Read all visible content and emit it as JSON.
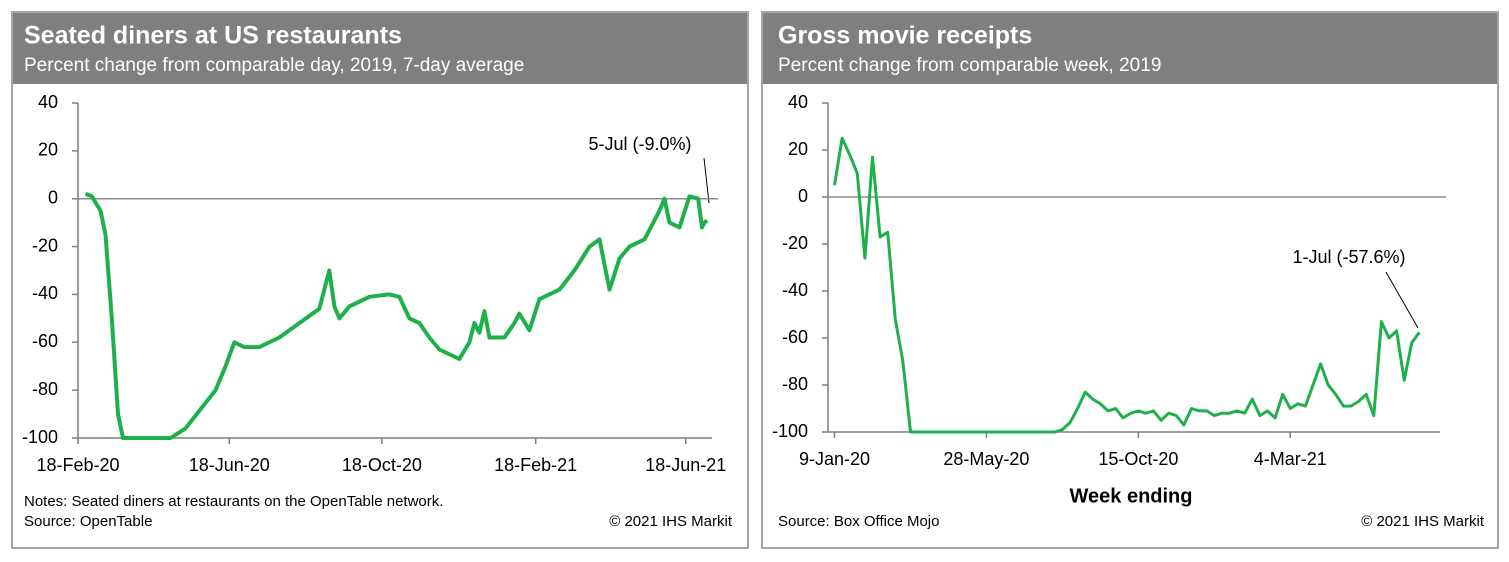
{
  "chart_data": [
    {
      "type": "line",
      "title": "Seated diners at US restaurants",
      "subtitle": "Percent change from comparable day, 2019, 7-day average",
      "x": [
        "2020-02-24",
        "2020-02-29",
        "2020-03-07",
        "2020-03-11",
        "2020-03-16",
        "2020-03-21",
        "2020-03-25",
        "2020-05-02",
        "2020-05-14",
        "2020-05-26",
        "2020-06-07",
        "2020-06-15",
        "2020-06-22",
        "2020-06-30",
        "2020-07-12",
        "2020-07-28",
        "2020-08-13",
        "2020-08-29",
        "2020-09-06",
        "2020-09-10",
        "2020-09-14",
        "2020-09-22",
        "2020-10-08",
        "2020-10-24",
        "2020-11-01",
        "2020-11-09",
        "2020-11-17",
        "2020-11-25",
        "2020-12-03",
        "2020-12-19",
        "2020-12-27",
        "2020-12-31",
        "2021-01-04",
        "2021-01-08",
        "2021-01-12",
        "2021-01-24",
        "2021-02-01",
        "2021-02-05",
        "2021-02-13",
        "2021-02-21",
        "2021-03-09",
        "2021-03-21",
        "2021-04-02",
        "2021-04-10",
        "2021-04-18",
        "2021-04-26",
        "2021-05-04",
        "2021-05-16",
        "2021-05-28",
        "2021-06-01",
        "2021-06-05",
        "2021-06-13",
        "2021-06-21",
        "2021-06-28",
        "2021-07-01",
        "2021-07-03",
        "2021-07-05"
      ],
      "values": [
        2,
        1,
        -5,
        -15,
        -50,
        -90,
        -100,
        -100,
        -96,
        -88,
        -80,
        -70,
        -60,
        -62,
        -62,
        -58,
        -52,
        -46,
        -30,
        -45,
        -50,
        -45,
        -41,
        -40,
        -41,
        -50,
        -52,
        -58,
        -63,
        -67,
        -60,
        -52,
        -56,
        -47,
        -58,
        -58,
        -52,
        -48,
        -55,
        -42,
        -38,
        -30,
        -20,
        -17,
        -38,
        -25,
        -20,
        -17,
        -5,
        0,
        -10,
        -12,
        1,
        0,
        -12,
        -10,
        -9
      ],
      "color": "#1fb04b",
      "xlim": [
        "2020-02-18",
        "2021-07-09"
      ],
      "xticks": [
        {
          "value": "2020-02-18",
          "label": "18-Feb-20"
        },
        {
          "value": "2020-06-18",
          "label": "18-Jun-20"
        },
        {
          "value": "2020-10-18",
          "label": "18-Oct-20"
        },
        {
          "value": "2021-02-18",
          "label": "18-Feb-21"
        },
        {
          "value": "2021-06-18",
          "label": "18-Jun-21"
        }
      ],
      "ylim": [
        -100,
        40
      ],
      "yticks": [
        -100,
        -80,
        -60,
        -40,
        -20,
        0,
        20,
        40
      ],
      "annotation": "5-Jul (-9.0%)",
      "notes": "Notes: Seated diners at restaurants on the OpenTable network.",
      "source": "Source: OpenTable",
      "copyright": "© 2021 IHS Markit"
    },
    {
      "type": "line",
      "title": "Gross movie receipts",
      "subtitle": "Percent change from comparable week, 2019",
      "xlabel": "Week ending",
      "x": [
        "2020-01-09",
        "2020-01-16",
        "2020-01-23",
        "2020-01-30",
        "2020-02-06",
        "2020-02-13",
        "2020-02-20",
        "2020-02-27",
        "2020-03-05",
        "2020-03-12",
        "2020-03-19",
        "2020-03-26",
        "2020-04-02",
        "2020-04-09",
        "2020-04-16",
        "2020-04-23",
        "2020-04-30",
        "2020-05-07",
        "2020-05-14",
        "2020-05-21",
        "2020-05-28",
        "2020-06-04",
        "2020-06-11",
        "2020-06-18",
        "2020-06-25",
        "2020-07-02",
        "2020-07-09",
        "2020-07-16",
        "2020-07-23",
        "2020-07-30",
        "2020-08-06",
        "2020-08-13",
        "2020-08-20",
        "2020-08-27",
        "2020-09-03",
        "2020-09-10",
        "2020-09-17",
        "2020-09-24",
        "2020-10-01",
        "2020-10-08",
        "2020-10-15",
        "2020-10-22",
        "2020-10-29",
        "2020-11-05",
        "2020-11-12",
        "2020-11-19",
        "2020-11-26",
        "2020-12-03",
        "2020-12-10",
        "2020-12-17",
        "2020-12-24",
        "2020-12-31",
        "2021-01-07",
        "2021-01-14",
        "2021-01-21",
        "2021-01-28",
        "2021-02-04",
        "2021-02-11",
        "2021-02-18",
        "2021-02-25",
        "2021-03-04",
        "2021-03-11",
        "2021-03-18",
        "2021-03-25",
        "2021-04-01",
        "2021-04-08",
        "2021-04-15",
        "2021-04-22",
        "2021-04-29",
        "2021-05-06",
        "2021-05-13",
        "2021-05-20",
        "2021-05-27",
        "2021-06-03",
        "2021-06-10",
        "2021-06-17",
        "2021-06-24",
        "2021-07-01"
      ],
      "values": [
        5,
        25,
        18,
        10,
        -26,
        17,
        -17,
        -15,
        -52,
        -70,
        -100,
        -100,
        -100,
        -100,
        -100,
        -100,
        -100,
        -100,
        -100,
        -100,
        -100,
        -100,
        -100,
        -100,
        -100,
        -100,
        -100,
        -100,
        -100,
        -100,
        -99,
        -96,
        -90,
        -83,
        -86,
        -88,
        -91,
        -90,
        -94,
        -92,
        -91,
        -92,
        -91,
        -95,
        -92,
        -93,
        -97,
        -90,
        -91,
        -91,
        -93,
        -92,
        -92,
        -91,
        -92,
        -86,
        -93,
        -91,
        -94,
        -84,
        -90,
        -88,
        -89,
        -80,
        -71,
        -80,
        -84,
        -89,
        -89,
        -87,
        -84,
        -93,
        -53,
        -60,
        -57,
        -78,
        -62,
        -57.6
      ],
      "color": "#1fb04b",
      "xlim": [
        "2020-01-03",
        "2021-07-20"
      ],
      "xticks": [
        {
          "value": "2020-01-09",
          "label": "9-Jan-20"
        },
        {
          "value": "2020-05-28",
          "label": "28-May-20"
        },
        {
          "value": "2020-10-15",
          "label": "15-Oct-20"
        },
        {
          "value": "2021-03-04",
          "label": "4-Mar-21"
        }
      ],
      "ylim": [
        -100,
        40
      ],
      "yticks": [
        -100,
        -80,
        -60,
        -40,
        -20,
        0,
        20,
        40
      ],
      "annotation": "1-Jul (-57.6%)",
      "source": "Source: Box Office Mojo",
      "copyright": "© 2021 IHS Markit"
    }
  ]
}
